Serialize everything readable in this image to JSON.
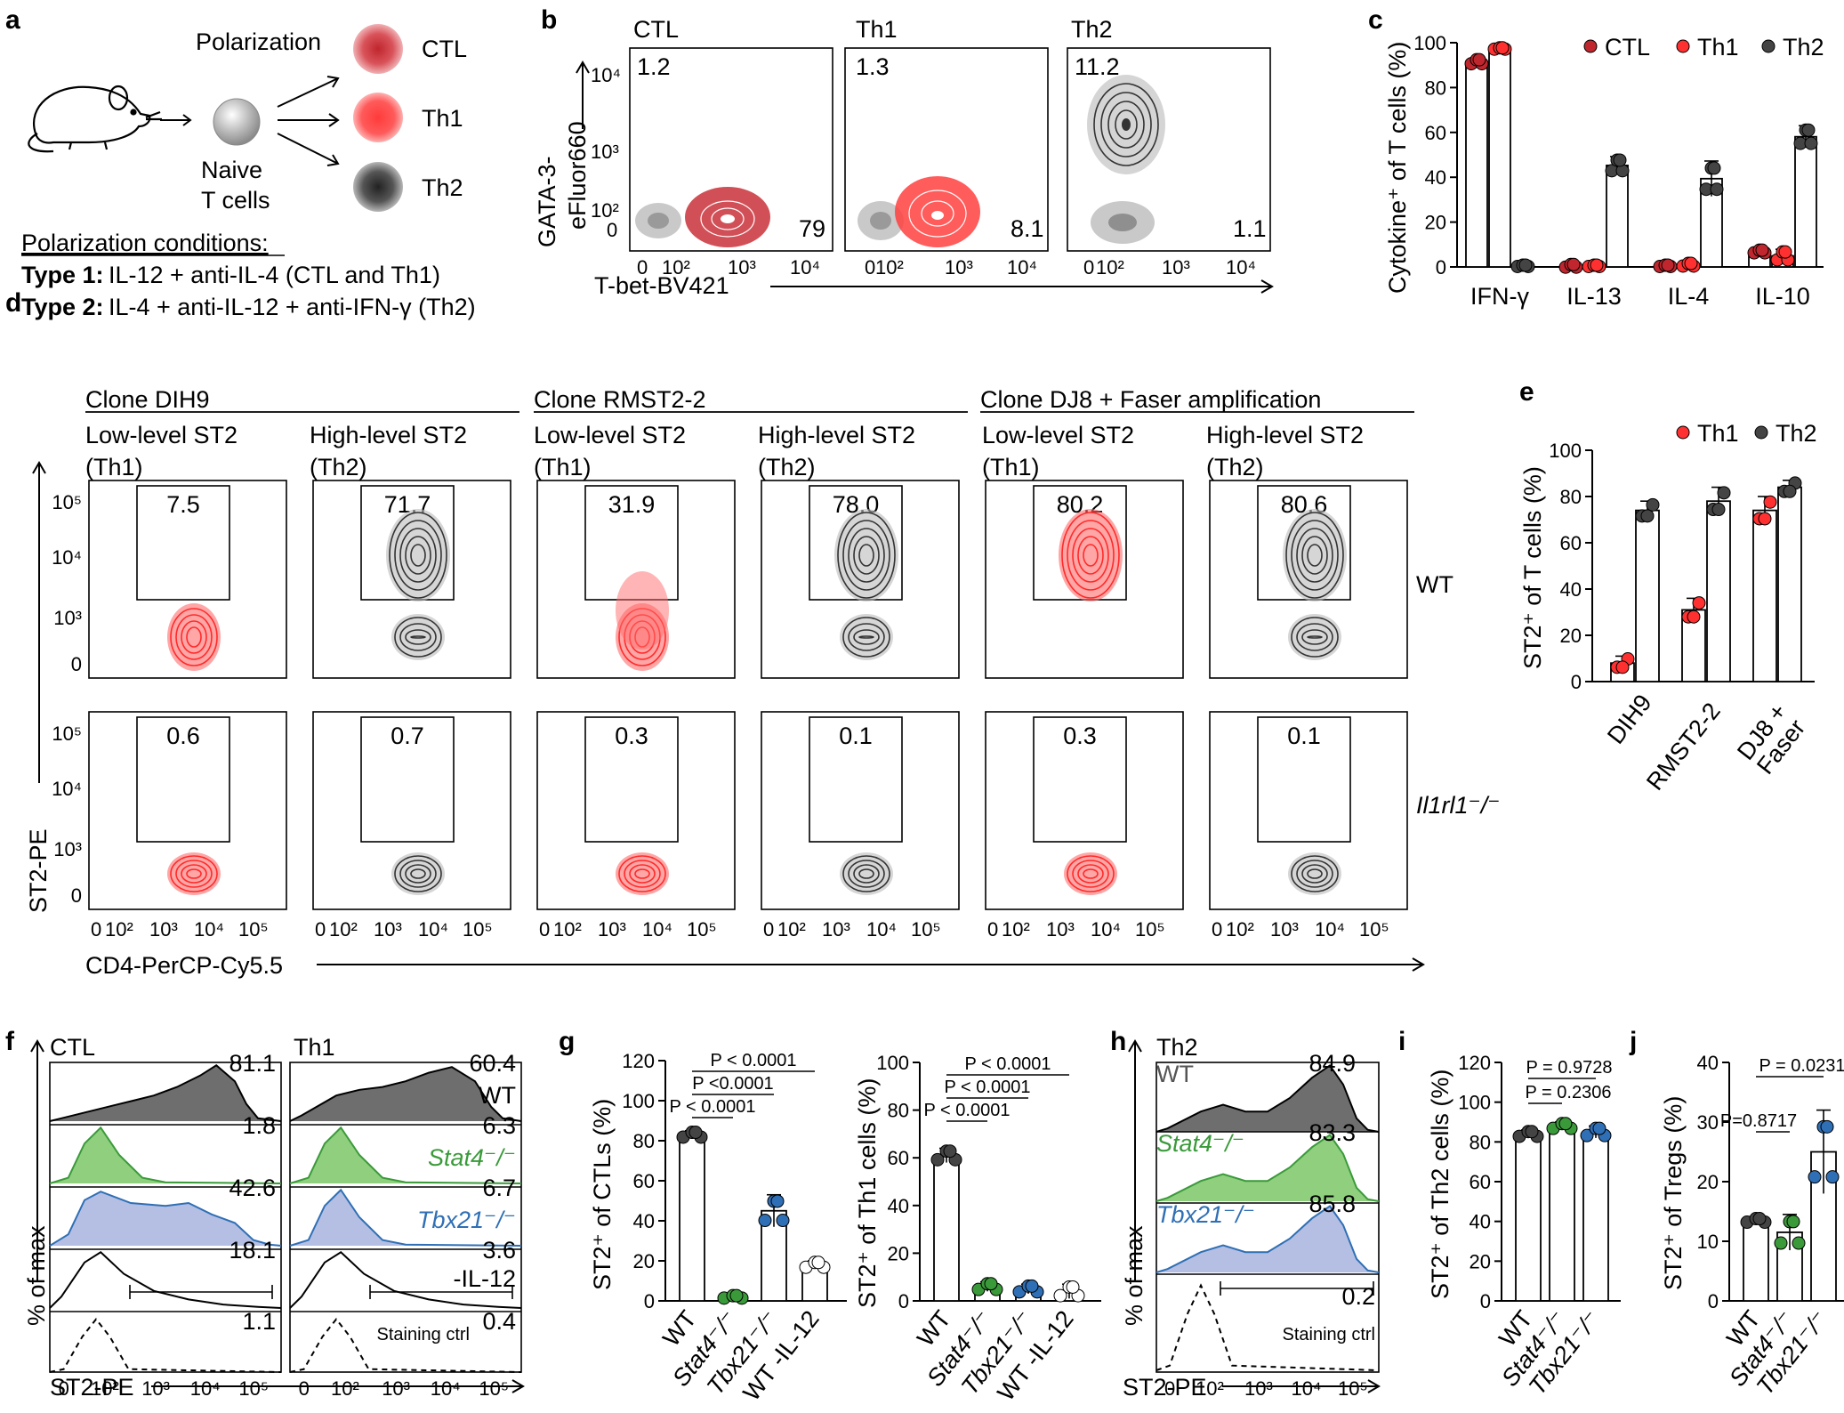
{
  "panel_labels": [
    "a",
    "b",
    "c",
    "d",
    "e",
    "f",
    "g",
    "h",
    "i",
    "j"
  ],
  "colors": {
    "red": "#e8252a",
    "dark": "#3a3a3a",
    "green": "#3a9a3a",
    "blue": "#2f6fb5",
    "gray": "#b8b8b8",
    "green_fill": "#8fcf7e",
    "blue_fill": "#b5bfe3",
    "dark_fill": "#6e6e6e"
  },
  "panel_a": {
    "polarization": "Polarization",
    "naive_line1": "Naive",
    "naive_line2": "T cells",
    "cells": [
      "CTL",
      "Th1",
      "Th2"
    ],
    "conditions_title": "Polarization conditions:",
    "type1_label": "Type 1:",
    "type1_text": "IL-12 + anti-IL-4  (CTL and Th1)",
    "type2_label": "Type 2:",
    "type2_text": "IL-4 + anti-IL-12 + anti-IFN-γ (Th2)"
  },
  "panel_b": {
    "titles": [
      "CTL",
      "Th1",
      "Th2"
    ],
    "upper_numbers": [
      "1.2",
      "1.3",
      "11.2"
    ],
    "lower_numbers": [
      "79",
      "8.1",
      "1.1"
    ],
    "y_label_1": "GATA-3-",
    "y_label_2": "eFluor660",
    "x_label": "T-bet-BV421",
    "y_ticks": [
      "10⁴",
      "10³",
      "10²",
      "0"
    ],
    "x_ticks": [
      "0",
      "10²",
      "10³",
      "10⁴"
    ]
  },
  "panel_c": {
    "legend": [
      "CTL",
      "Th1",
      "Th2"
    ],
    "y_label": "Cytokine⁺ of T cells (%)",
    "y_ticks": [
      "0",
      "20",
      "40",
      "60",
      "80",
      "100"
    ],
    "chart_data": {
      "type": "bar",
      "categories": [
        "IFN-γ",
        "IL-13",
        "IL-4",
        "IL-10"
      ],
      "series": [
        {
          "name": "CTL",
          "values": [
            93,
            0.5,
            0.5,
            7
          ]
        },
        {
          "name": "Th1",
          "values": [
            99,
            0.5,
            1,
            5
          ]
        },
        {
          "name": "Th2",
          "values": [
            0.5,
            46,
            40,
            59
          ]
        }
      ],
      "ylabel": "Cytokine+ of T cells (%)",
      "ylim": [
        0,
        100
      ]
    }
  },
  "panel_d": {
    "clones": [
      "Clone DIH9",
      "Clone RMST2-2",
      "Clone DJ8 + Faser amplification"
    ],
    "col_title_1": [
      "Low-level ST2",
      "High-level ST2",
      "Low-level ST2",
      "High-level ST2",
      "Low-level ST2",
      "High-level ST2"
    ],
    "col_title_2": [
      "(Th1)",
      "(Th2)",
      "(Th1)",
      "(Th2)",
      "(Th1)",
      "(Th2)"
    ],
    "wt_numbers": [
      "7.5",
      "71.7",
      "31.9",
      "78.0",
      "80.2",
      "80.6"
    ],
    "ko_numbers": [
      "0.6",
      "0.7",
      "0.3",
      "0.1",
      "0.3",
      "0.1"
    ],
    "row_wt": "WT",
    "row_ko": "Il1rl1⁻/⁻",
    "y_label": "ST2-PE",
    "x_label": "CD4-PerCP-Cy5.5",
    "y_ticks": [
      "10⁵",
      "10⁴",
      "10³",
      "0"
    ],
    "x_ticks": [
      "0",
      "10²",
      "10³",
      "10⁴",
      "10⁵"
    ]
  },
  "panel_e": {
    "legend": [
      "Th1",
      "Th2"
    ],
    "y_label": "ST2⁺ of T cells (%)",
    "y_ticks": [
      "0",
      "20",
      "40",
      "60",
      "80",
      "100"
    ],
    "x_labels": [
      "DIH9",
      "RMST2-2",
      "DJ8 +",
      "Faser"
    ],
    "chart_data": {
      "type": "bar",
      "categories": [
        "DIH9",
        "RMST2-2",
        "DJ8 + Faser"
      ],
      "series": [
        {
          "name": "Th1",
          "values": [
            8,
            31,
            74
          ]
        },
        {
          "name": "Th2",
          "values": [
            74,
            78,
            84
          ]
        }
      ],
      "ylabel": "ST2+ of T cells (%)",
      "ylim": [
        0,
        100
      ]
    }
  },
  "panel_f": {
    "titles": [
      "CTL",
      "Th1"
    ],
    "ctl_numbers": [
      "81.1",
      "1.8",
      "42.6",
      "18.1",
      "1.1"
    ],
    "th1_numbers": [
      "60.4",
      "6.3",
      "6.7",
      "3.6",
      "0.4"
    ],
    "row_labels": [
      "WT",
      "Stat4⁻/⁻",
      "Tbx21⁻/⁻",
      "-IL-12",
      "Staining ctrl"
    ],
    "y_label": "% of max",
    "x_label": "ST2-PE",
    "x_ticks": [
      "0",
      "10²",
      "10³",
      "10⁴",
      "10⁵"
    ]
  },
  "panel_g": {
    "left": {
      "y_label": "ST2⁺ of CTLs (%)",
      "y_ticks": [
        "0",
        "20",
        "40",
        "60",
        "80",
        "100",
        "120"
      ],
      "x_labels": [
        "WT",
        "Stat4⁻/⁻",
        "Tbx21⁻/⁻",
        "WT -IL-12"
      ],
      "pvals": [
        "P < 0.0001",
        "P <0.0001",
        "P < 0.0001"
      ],
      "chart_data": {
        "type": "bar",
        "categories": [
          "WT",
          "Stat4-/-",
          "Tbx21-/-",
          "WT -IL-12"
        ],
        "values": [
          83,
          2,
          45,
          18
        ],
        "ylabel": "ST2+ of CTLs (%)",
        "ylim": [
          0,
          120
        ]
      }
    },
    "right": {
      "y_label": "ST2⁺ of Th1 cells (%)",
      "y_ticks": [
        "0",
        "20",
        "40",
        "60",
        "80",
        "100"
      ],
      "x_labels": [
        "WT",
        "Stat4⁻/⁻",
        "Tbx21⁻/⁻",
        "WT -IL-12"
      ],
      "pvals": [
        "P < 0.0001",
        "P < 0.0001",
        "P < 0.0001"
      ],
      "chart_data": {
        "type": "bar",
        "categories": [
          "WT",
          "Stat4-/-",
          "Tbx21-/-",
          "WT -IL-12"
        ],
        "values": [
          61,
          6,
          5,
          4
        ],
        "ylabel": "ST2+ of Th1 cells (%)",
        "ylim": [
          0,
          100
        ]
      }
    }
  },
  "panel_h": {
    "title": "Th2",
    "numbers": [
      "84.9",
      "83.3",
      "85.8",
      "0.2"
    ],
    "row_labels": [
      "WT",
      "Stat4⁻/⁻",
      "Tbx21⁻/⁻",
      "Staining ctrl"
    ],
    "y_label": "% of max",
    "x_label": "ST2-PE",
    "x_ticks": [
      "0",
      "10²",
      "10³",
      "10⁴",
      "10⁵"
    ]
  },
  "panel_i": {
    "y_label": "ST2⁺ of Th2 cells (%)",
    "y_ticks": [
      "0",
      "20",
      "40",
      "60",
      "80",
      "100",
      "120"
    ],
    "x_labels": [
      "WT",
      "Stat4⁻/⁻",
      "Tbx21⁻/⁻"
    ],
    "pvals": [
      "P = 0.9728",
      "P = 0.2306"
    ],
    "chart_data": {
      "type": "bar",
      "categories": [
        "WT",
        "Stat4-/-",
        "Tbx21-/-"
      ],
      "values": [
        84,
        88,
        85
      ],
      "ylabel": "ST2+ of Th2 cells (%)",
      "ylim": [
        0,
        120
      ]
    }
  },
  "panel_j": {
    "y_label": "ST2⁺ of Tregs (%)",
    "y_ticks": [
      "0",
      "10",
      "20",
      "30",
      "40"
    ],
    "x_labels": [
      "WT",
      "Stat4⁻/⁻",
      "Tbx21⁻/⁻"
    ],
    "pvals": [
      "P = 0.0231",
      "P=0.8717"
    ],
    "chart_data": {
      "type": "bar",
      "categories": [
        "WT",
        "Stat4-/-",
        "Tbx21-/-"
      ],
      "values": [
        13.5,
        11.5,
        25
      ],
      "ylabel": "ST2+ of Tregs (%)",
      "ylim": [
        0,
        40
      ]
    }
  }
}
